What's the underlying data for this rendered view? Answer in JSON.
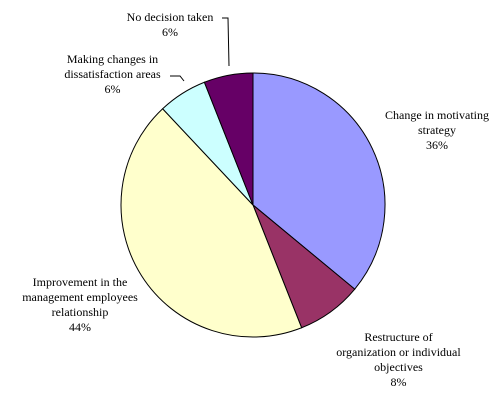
{
  "chart_data": {
    "type": "pie",
    "categories": [
      "Change in motivating strategy",
      "Restructure of organization or individual objectives",
      "Improvement in the management employees relationship",
      "Making changes in dissatisfaction areas",
      "No decision taken"
    ],
    "values": [
      36,
      8,
      44,
      6,
      6
    ],
    "value_labels": [
      "36%",
      "8%",
      "44%",
      "6%",
      "6%"
    ],
    "colors": [
      "#9999ff",
      "#993366",
      "#ffffcc",
      "#ccffff",
      "#660066"
    ]
  }
}
